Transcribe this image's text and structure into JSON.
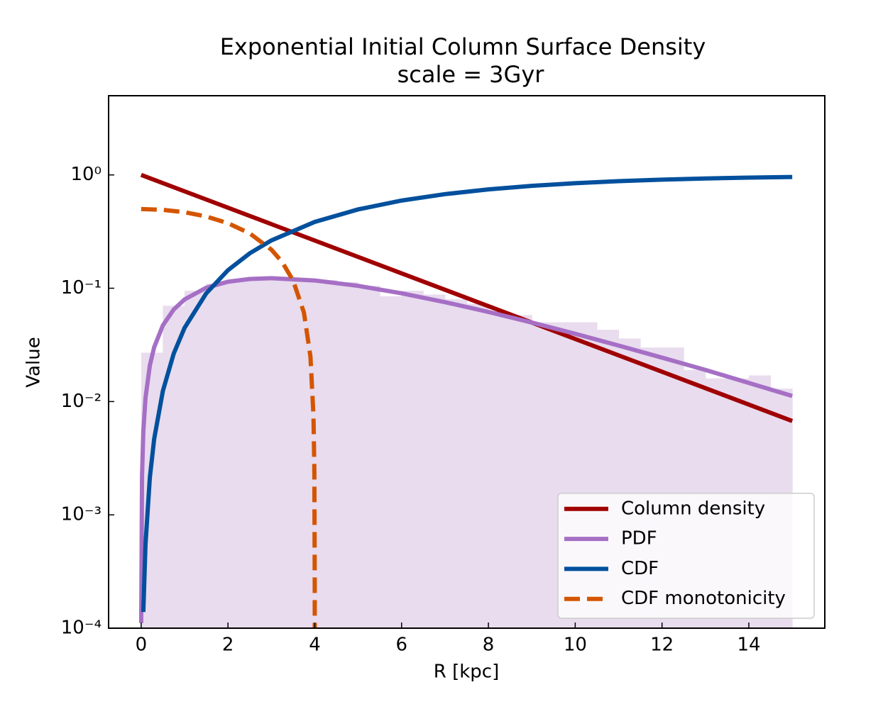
{
  "chart_data": {
    "type": "line",
    "title": "Exponential Initial Column Surface Density",
    "subtitle": "scale = 3Gyr",
    "xlabel": "R [kpc]",
    "ylabel": "Value",
    "xlim": [
      -0.75,
      15.75
    ],
    "ylim": [
      0.0001,
      5.0
    ],
    "yscale": "log",
    "xticks": [
      0,
      2,
      4,
      6,
      8,
      10,
      12,
      14
    ],
    "yticks": [
      {
        "value": 0.0001,
        "label": "10⁻⁴"
      },
      {
        "value": 0.001,
        "label": "10⁻³"
      },
      {
        "value": 0.01,
        "label": "10⁻²"
      },
      {
        "value": 0.1,
        "label": "10⁻¹"
      },
      {
        "value": 1,
        "label": "10⁰"
      }
    ],
    "legend": "lower right",
    "histogram": {
      "color": "#e8dcee",
      "bins": [
        0,
        0.5,
        1,
        1.5,
        2,
        2.5,
        3,
        3.5,
        4,
        4.5,
        5,
        5.5,
        6,
        6.5,
        7,
        7.5,
        8,
        8.5,
        9,
        9.5,
        10,
        10.5,
        11,
        11.5,
        12,
        12.5,
        13,
        13.5,
        14,
        14.5,
        15
      ],
      "counts": [
        0.027,
        0.07,
        0.095,
        0.11,
        0.118,
        0.122,
        0.124,
        0.122,
        0.118,
        0.113,
        0.105,
        0.085,
        0.095,
        0.088,
        0.08,
        0.073,
        0.06,
        0.058,
        0.05,
        0.05,
        0.05,
        0.043,
        0.036,
        0.03,
        0.03,
        0.019,
        0.016,
        0.016,
        0.017,
        0.013
      ]
    },
    "series": [
      {
        "name": "Column density",
        "color": "#a00000",
        "dash": false,
        "x": [
          0,
          3,
          6,
          9,
          12,
          15
        ],
        "values": [
          1,
          0.3679,
          0.1353,
          0.04979,
          0.01832,
          0.006738
        ]
      },
      {
        "name": "PDF",
        "color": "#a66fc5",
        "dash": false,
        "x": [
          0.001,
          0.02,
          0.05,
          0.1,
          0.2,
          0.3,
          0.5,
          0.75,
          1,
          1.5,
          2,
          2.5,
          3,
          4,
          5,
          6,
          7,
          8,
          9,
          10,
          11,
          12,
          13,
          14,
          15
        ],
        "values": [
          0.000111,
          0.00221,
          0.00546,
          0.01075,
          0.02079,
          0.03016,
          0.04703,
          0.0649,
          0.0796,
          0.1011,
          0.1141,
          0.1207,
          0.1226,
          0.1171,
          0.1049,
          0.0902,
          0.0754,
          0.0618,
          0.0498,
          0.0396,
          0.0312,
          0.0244,
          0.019,
          0.0146,
          0.0112
        ]
      },
      {
        "name": "CDF",
        "color": "#00509d",
        "dash": false,
        "x": [
          0.05,
          0.1,
          0.2,
          0.3,
          0.5,
          0.75,
          1,
          1.5,
          2,
          2.5,
          3,
          4,
          5,
          6,
          7,
          8,
          9,
          10,
          11,
          12,
          13,
          14,
          15
        ],
        "values": [
          0.000139,
          0.000548,
          0.00213,
          0.00468,
          0.0124,
          0.0265,
          0.0447,
          0.0902,
          0.1443,
          0.2032,
          0.2642,
          0.3849,
          0.4963,
          0.594,
          0.6768,
          0.7452,
          0.8009,
          0.8454,
          0.8807,
          0.9084,
          0.93,
          0.9467,
          0.9596
        ]
      },
      {
        "name": "CDF monotonicity",
        "color": "#d45500",
        "dash": true,
        "x": [
          0,
          0.5,
          1,
          1.5,
          2,
          2.5,
          3,
          3.25,
          3.5,
          3.75,
          3.9,
          3.97,
          3.99,
          3.999,
          3.9999
        ],
        "values": [
          0.5,
          0.492,
          0.469,
          0.43,
          0.375,
          0.305,
          0.219,
          0.17,
          0.117,
          0.061,
          0.025,
          0.0075,
          0.0025,
          0.00025,
          2.5e-05
        ]
      }
    ]
  }
}
